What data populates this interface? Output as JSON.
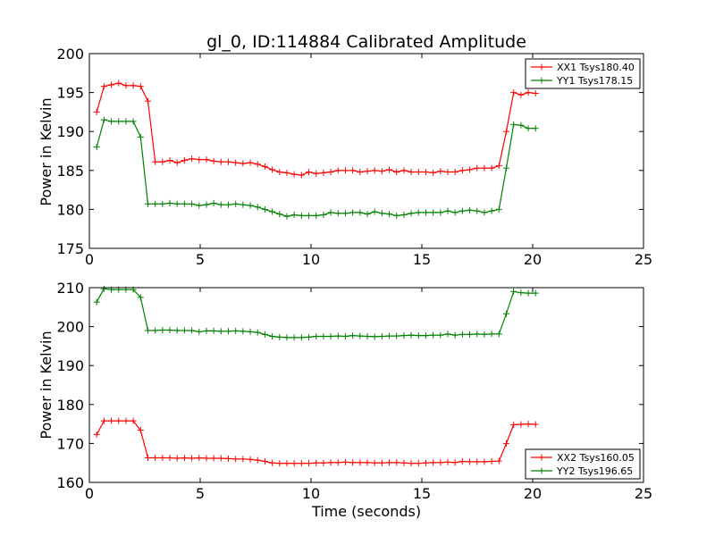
{
  "chart_data": [
    {
      "type": "line",
      "title": "gl_0, ID:114884 Calibrated Amplitude",
      "xlabel": "",
      "ylabel": "Power in Kelvin",
      "xlim": [
        0,
        25
      ],
      "ylim": [
        175,
        200
      ],
      "xticks": [
        "0",
        "5",
        "10",
        "15",
        "20",
        "25"
      ],
      "yticks": [
        "175",
        "180",
        "185",
        "190",
        "195",
        "200"
      ],
      "legend_position": "top-right",
      "x": [
        0.33,
        0.66,
        0.99,
        1.32,
        1.65,
        1.98,
        2.31,
        2.64,
        2.97,
        3.3,
        3.63,
        3.96,
        4.29,
        4.62,
        4.95,
        5.28,
        5.61,
        5.94,
        6.27,
        6.6,
        6.93,
        7.26,
        7.59,
        7.92,
        8.25,
        8.58,
        8.91,
        9.24,
        9.57,
        9.9,
        10.23,
        10.56,
        10.89,
        11.22,
        11.55,
        11.88,
        12.21,
        12.54,
        12.87,
        13.2,
        13.53,
        13.86,
        14.19,
        14.52,
        14.85,
        15.18,
        15.51,
        15.84,
        16.17,
        16.5,
        16.83,
        17.16,
        17.49,
        17.82,
        18.15,
        18.48,
        18.81,
        19.14,
        19.47,
        19.8,
        20.13
      ],
      "series": [
        {
          "name": "XX1 Tsys180.40",
          "color": "#ff0000",
          "values": [
            192.5,
            195.8,
            196.0,
            196.2,
            195.9,
            195.9,
            195.8,
            193.9,
            186.1,
            186.1,
            186.3,
            186.0,
            186.3,
            186.5,
            186.4,
            186.4,
            186.2,
            186.1,
            186.1,
            186.0,
            185.9,
            186.0,
            185.8,
            185.5,
            185.1,
            184.8,
            184.7,
            184.5,
            184.4,
            184.8,
            184.6,
            184.7,
            184.8,
            185.0,
            185.0,
            185.0,
            184.8,
            184.9,
            185.0,
            184.9,
            185.1,
            184.8,
            185.0,
            184.8,
            184.8,
            184.8,
            184.7,
            184.9,
            184.8,
            184.8,
            185.0,
            185.1,
            185.3,
            185.3,
            185.3,
            185.6,
            190.0,
            195.0,
            194.7,
            195.0,
            194.9
          ]
        },
        {
          "name": "YY1 Tsys178.15",
          "color": "#008000",
          "values": [
            188.0,
            191.5,
            191.3,
            191.3,
            191.3,
            191.3,
            189.3,
            180.7,
            180.7,
            180.7,
            180.8,
            180.7,
            180.7,
            180.7,
            180.5,
            180.6,
            180.8,
            180.6,
            180.6,
            180.7,
            180.6,
            180.5,
            180.3,
            180.0,
            179.7,
            179.4,
            179.1,
            179.3,
            179.2,
            179.2,
            179.2,
            179.3,
            179.6,
            179.5,
            179.5,
            179.6,
            179.6,
            179.4,
            179.7,
            179.5,
            179.4,
            179.2,
            179.3,
            179.5,
            179.6,
            179.6,
            179.6,
            179.6,
            179.8,
            179.6,
            179.8,
            179.9,
            179.8,
            179.6,
            179.8,
            180.0,
            185.3,
            190.9,
            190.8,
            190.4,
            190.4
          ]
        }
      ]
    },
    {
      "type": "line",
      "title": "",
      "xlabel": "Time (seconds)",
      "ylabel": "Power in Kelvin",
      "xlim": [
        0,
        25
      ],
      "ylim": [
        160,
        210
      ],
      "xticks": [
        "0",
        "5",
        "10",
        "15",
        "20",
        "25"
      ],
      "yticks": [
        "160",
        "170",
        "180",
        "190",
        "200",
        "210"
      ],
      "legend_position": "bottom-right",
      "x": [
        0.33,
        0.66,
        0.99,
        1.32,
        1.65,
        1.98,
        2.31,
        2.64,
        2.97,
        3.3,
        3.63,
        3.96,
        4.29,
        4.62,
        4.95,
        5.28,
        5.61,
        5.94,
        6.27,
        6.6,
        6.93,
        7.26,
        7.59,
        7.92,
        8.25,
        8.58,
        8.91,
        9.24,
        9.57,
        9.9,
        10.23,
        10.56,
        10.89,
        11.22,
        11.55,
        11.88,
        12.21,
        12.54,
        12.87,
        13.2,
        13.53,
        13.86,
        14.19,
        14.52,
        14.85,
        15.18,
        15.51,
        15.84,
        16.17,
        16.5,
        16.83,
        17.16,
        17.49,
        17.82,
        18.15,
        18.48,
        18.81,
        19.14,
        19.47,
        19.8,
        20.13
      ],
      "series": [
        {
          "name": "XX2 Tsys160.05",
          "color": "#ff0000",
          "values": [
            172.3,
            175.8,
            175.8,
            175.8,
            175.8,
            175.8,
            173.4,
            166.3,
            166.3,
            166.3,
            166.3,
            166.2,
            166.3,
            166.2,
            166.3,
            166.2,
            166.2,
            166.2,
            166.1,
            166.0,
            166.0,
            165.9,
            165.7,
            165.4,
            165.0,
            164.9,
            164.9,
            164.9,
            164.9,
            164.9,
            165.0,
            165.0,
            165.1,
            165.1,
            165.2,
            165.1,
            165.1,
            165.1,
            165.0,
            165.0,
            165.1,
            165.1,
            165.0,
            164.9,
            164.9,
            165.0,
            165.1,
            165.1,
            165.2,
            165.1,
            165.4,
            165.3,
            165.3,
            165.3,
            165.4,
            165.5,
            170.0,
            174.8,
            174.9,
            175.0,
            174.9
          ]
        },
        {
          "name": "YY2 Tsys196.65",
          "color": "#008000",
          "values": [
            206.3,
            209.7,
            209.5,
            209.5,
            209.5,
            209.5,
            207.5,
            199.0,
            199.0,
            199.1,
            199.1,
            199.0,
            199.0,
            199.0,
            198.7,
            198.9,
            198.9,
            198.8,
            198.8,
            198.9,
            198.8,
            198.7,
            198.5,
            198.0,
            197.5,
            197.3,
            197.2,
            197.2,
            197.2,
            197.3,
            197.5,
            197.5,
            197.5,
            197.6,
            197.5,
            197.7,
            197.6,
            197.5,
            197.4,
            197.5,
            197.6,
            197.6,
            197.7,
            197.8,
            197.7,
            197.7,
            197.8,
            197.8,
            198.1,
            197.8,
            198.0,
            198.0,
            198.1,
            198.0,
            198.1,
            198.1,
            203.3,
            209.0,
            208.7,
            208.6,
            208.6
          ]
        }
      ]
    }
  ]
}
